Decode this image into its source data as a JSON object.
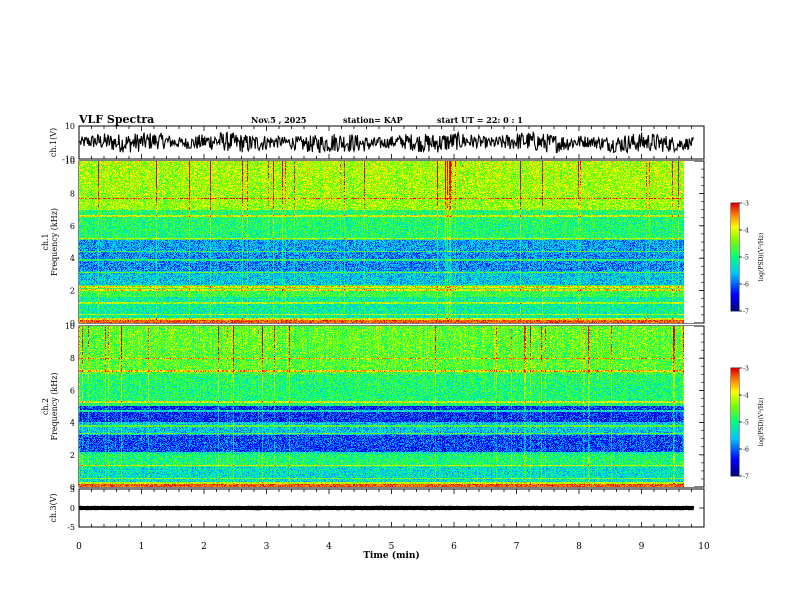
{
  "header": {
    "title": "VLF Spectra",
    "date": "Nov.5  , 2025",
    "station": "station= KAP",
    "start_ut": "start  UT  =   22: 0   : 1"
  },
  "chart_data": [
    {
      "type": "line",
      "name": "ch1-waveform",
      "ylabel": "ch.1(V)",
      "ylim": [
        -10,
        10
      ],
      "yticks": [
        "10",
        "-10"
      ],
      "xlim": [
        0,
        10
      ],
      "x_end": 9.83,
      "amplitude_range_V": [
        -6,
        6
      ]
    },
    {
      "type": "heatmap",
      "name": "ch1-spectrogram",
      "ylabel": "ch.1\nFrequency  (kHz)",
      "ylabel_lines": [
        "ch.1",
        "Frequency  (kHz)"
      ],
      "ylim": [
        0,
        10
      ],
      "yticks": [
        "0",
        "2",
        "4",
        "6",
        "8",
        "10"
      ],
      "xlim": [
        0,
        10
      ],
      "x_end": 9.83,
      "colorbar": {
        "label": "log(PSD)(V²/Hz)",
        "range": [
          -7,
          -3
        ],
        "ticks": [
          "-3",
          "-4",
          "-5",
          "-6",
          "-7"
        ]
      },
      "bands_log_psd": [
        {
          "f": [
            0.0,
            0.3
          ],
          "level": -4.0
        },
        {
          "f": [
            0.3,
            1.6
          ],
          "level": -5.2
        },
        {
          "f": [
            1.6,
            2.3
          ],
          "level": -4.8
        },
        {
          "f": [
            2.3,
            3.2
          ],
          "level": -5.6
        },
        {
          "f": [
            3.2,
            4.3
          ],
          "level": -5.9
        },
        {
          "f": [
            4.3,
            5.2
          ],
          "level": -5.8
        },
        {
          "f": [
            5.2,
            7.0
          ],
          "level": -5.0
        },
        {
          "f": [
            7.0,
            10.0
          ],
          "level": -4.4
        }
      ],
      "hlines_kHz": [
        0.5,
        1.2,
        2.0,
        2.2,
        3.1,
        3.9,
        4.4,
        5.2,
        6.6,
        7.7
      ]
    },
    {
      "type": "heatmap",
      "name": "ch2-spectrogram",
      "ylabel": "ch.2\nFrequency  (kHz)",
      "ylabel_lines": [
        "ch.2",
        "Frequency  (kHz)"
      ],
      "ylim": [
        0,
        10
      ],
      "yticks": [
        "0",
        "2",
        "4",
        "6",
        "8",
        "10"
      ],
      "xlim": [
        0,
        10
      ],
      "x_end": 9.83,
      "colorbar": {
        "label": "log(PSD)(V²/Hz)",
        "range": [
          -7,
          -3
        ],
        "ticks": [
          "-3",
          "-4",
          "-5",
          "-6",
          "-7"
        ]
      },
      "bands_log_psd": [
        {
          "f": [
            0.0,
            0.3
          ],
          "level": -4.2
        },
        {
          "f": [
            0.3,
            1.2
          ],
          "level": -5.4
        },
        {
          "f": [
            1.2,
            2.0
          ],
          "level": -5.0
        },
        {
          "f": [
            2.0,
            3.2
          ],
          "level": -6.2
        },
        {
          "f": [
            3.2,
            4.0
          ],
          "level": -5.6
        },
        {
          "f": [
            4.0,
            5.0
          ],
          "level": -6.3
        },
        {
          "f": [
            5.0,
            7.0
          ],
          "level": -5.0
        },
        {
          "f": [
            7.0,
            10.0
          ],
          "level": -4.7
        }
      ],
      "hlines_kHz": [
        0.5,
        1.3,
        2.1,
        3.3,
        3.8,
        4.7,
        5.3,
        7.2,
        8.0
      ]
    },
    {
      "type": "line",
      "name": "ch3-waveform",
      "ylabel": "ch.3(V)",
      "ylim": [
        -5,
        5
      ],
      "yticks": [
        "5",
        "0",
        "-5"
      ],
      "xlim": [
        0,
        10
      ],
      "x_end": 9.83,
      "amplitude_range_V": [
        -0.6,
        0.6
      ],
      "xlabel": "Time  (min)",
      "xticks": [
        "0",
        "1",
        "2",
        "3",
        "4",
        "5",
        "6",
        "7",
        "8",
        "9",
        "10"
      ]
    }
  ]
}
